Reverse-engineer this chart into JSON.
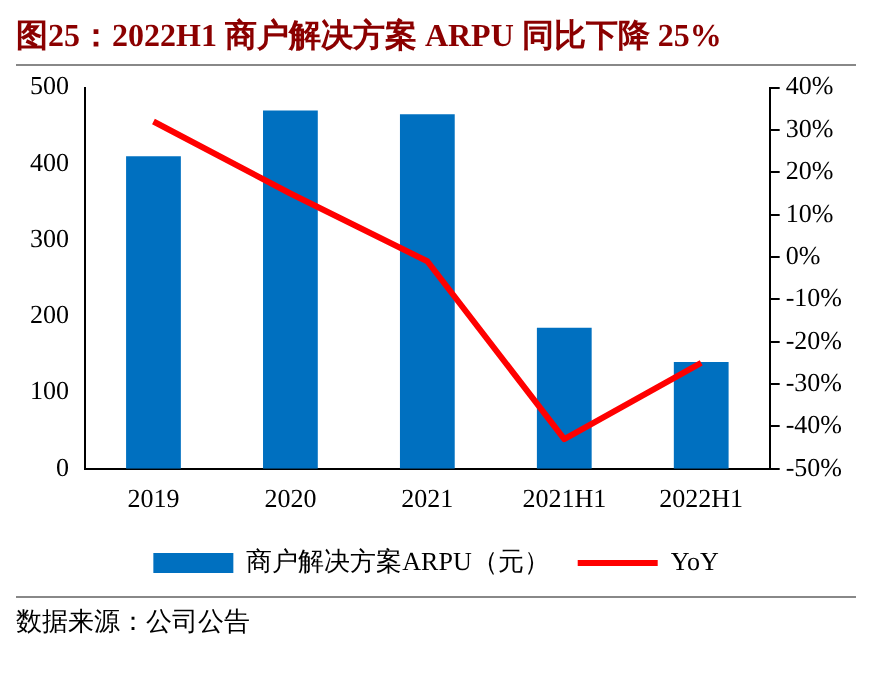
{
  "chart_data": {
    "type": "bar",
    "title": "图25：2022H1 商户解决方案 ARPU 同比下降 25%",
    "categories": [
      "2019",
      "2020",
      "2021",
      "2021H1",
      "2022H1"
    ],
    "series": [
      {
        "name": "商户解决方案ARPU（元）",
        "color": "#0070c0",
        "values": [
          410,
          470,
          465,
          185,
          140
        ]
      },
      {
        "name": "YoY",
        "type": "line",
        "axis": "y2",
        "color": "#ff0000",
        "values": [
          32,
          15,
          -1,
          -43,
          -25
        ]
      }
    ],
    "ylim": [
      0,
      500
    ],
    "yticks": [
      0,
      100,
      200,
      300,
      400,
      500
    ],
    "y2lim": [
      -50,
      40
    ],
    "y2ticks": [
      {
        "value": -50,
        "label": "-50%"
      },
      {
        "value": -40,
        "label": "-40%"
      },
      {
        "value": -30,
        "label": "-30%"
      },
      {
        "value": -20,
        "label": "-20%"
      },
      {
        "value": -10,
        "label": "-10%"
      },
      {
        "value": 0,
        "label": "0%"
      },
      {
        "value": 10,
        "label": "10%"
      },
      {
        "value": 20,
        "label": "20%"
      },
      {
        "value": 30,
        "label": "30%"
      },
      {
        "value": 40,
        "label": "40%"
      }
    ],
    "legend": "bottom",
    "grid": false,
    "annotations": [
      "数据来源：公司公告"
    ]
  }
}
